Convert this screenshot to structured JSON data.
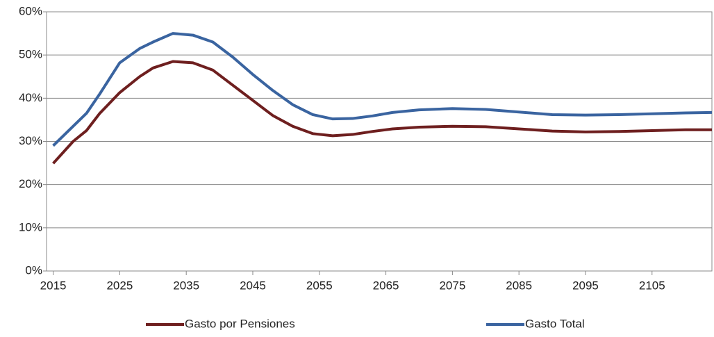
{
  "chart_data": {
    "type": "line",
    "x": [
      2015,
      2018,
      2020,
      2022,
      2025,
      2028,
      2030,
      2033,
      2036,
      2039,
      2042,
      2045,
      2048,
      2051,
      2054,
      2057,
      2060,
      2063,
      2066,
      2070,
      2075,
      2080,
      2085,
      2090,
      2095,
      2100,
      2105,
      2110,
      2114
    ],
    "series": [
      {
        "name": "Gasto por Pensiones",
        "color": "#6e1f1f",
        "values": [
          24.9,
          30,
          32.5,
          36.5,
          41.3,
          45,
          47,
          48.5,
          48.2,
          46.5,
          43,
          39.5,
          36,
          33.5,
          31.8,
          31.3,
          31.6,
          32.3,
          32.9,
          33.3,
          33.5,
          33.4,
          32.9,
          32.4,
          32.2,
          32.3,
          32.5,
          32.7,
          32.7
        ]
      },
      {
        "name": "Gasto Total",
        "color": "#3a64a0",
        "values": [
          29,
          33.5,
          36.5,
          41,
          48.2,
          51.5,
          53,
          55,
          54.6,
          53,
          49.5,
          45.5,
          41.8,
          38.5,
          36.2,
          35.2,
          35.3,
          35.9,
          36.7,
          37.3,
          37.6,
          37.4,
          36.8,
          36.2,
          36.1,
          36.2,
          36.4,
          36.6,
          36.7
        ]
      }
    ],
    "xlim": [
      2014,
      2114
    ],
    "xticks": [
      2015,
      2025,
      2035,
      2045,
      2055,
      2065,
      2075,
      2085,
      2095,
      2105
    ],
    "ylim": [
      0,
      60
    ],
    "yticks": [
      {
        "value": 0,
        "label": "0%"
      },
      {
        "value": 10,
        "label": "10%"
      },
      {
        "value": 20,
        "label": "20%"
      },
      {
        "value": 30,
        "label": "30%"
      },
      {
        "value": 40,
        "label": "40%"
      },
      {
        "value": 50,
        "label": "50%"
      },
      {
        "value": 60,
        "label": "60%"
      }
    ],
    "grid": true,
    "legend": "bottom"
  }
}
